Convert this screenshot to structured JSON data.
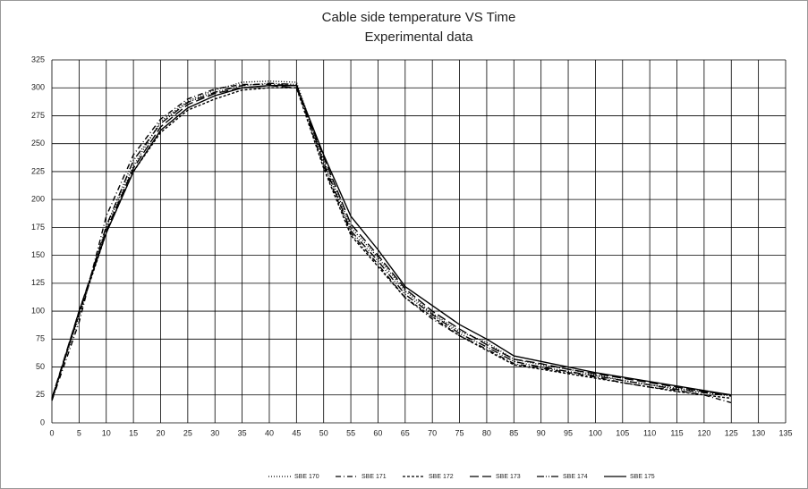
{
  "chart_data": {
    "type": "line",
    "title": "Cable side temperature VS Time",
    "subtitle": "Experimental data",
    "x": [
      0,
      5,
      10,
      15,
      20,
      25,
      30,
      35,
      40,
      45,
      50,
      55,
      60,
      65,
      70,
      75,
      80,
      85,
      90,
      95,
      100,
      105,
      110,
      115,
      120,
      125
    ],
    "series": [
      {
        "name": "SBE 170",
        "color": "#000000",
        "dash": "1,2",
        "values": [
          22,
          95,
          175,
          230,
          270,
          288,
          298,
          305,
          306,
          305,
          235,
          175,
          148,
          118,
          98,
          82,
          72,
          57,
          52,
          48,
          43,
          38,
          34,
          31,
          28,
          25
        ]
      },
      {
        "name": "SBE 171",
        "color": "#000000",
        "dash": "6,3,1,3",
        "values": [
          20,
          90,
          185,
          240,
          272,
          290,
          299,
          303,
          303,
          302,
          230,
          170,
          142,
          112,
          93,
          78,
          66,
          53,
          49,
          45,
          41,
          36,
          32,
          29,
          25,
          18
        ]
      },
      {
        "name": "SBE 172",
        "color": "#000000",
        "dash": "3,2",
        "values": [
          22,
          97,
          170,
          225,
          260,
          280,
          290,
          298,
          300,
          300,
          228,
          168,
          140,
          112,
          95,
          78,
          65,
          52,
          48,
          44,
          40,
          36,
          32,
          28,
          25,
          22
        ]
      },
      {
        "name": "SBE 173",
        "color": "#000000",
        "dash": "10,4",
        "values": [
          22,
          100,
          172,
          228,
          265,
          285,
          295,
          300,
          302,
          300,
          238,
          178,
          150,
          120,
          100,
          84,
          70,
          57,
          53,
          48,
          44,
          40,
          36,
          32,
          28,
          25
        ]
      },
      {
        "name": "SBE 174",
        "color": "#000000",
        "dash": "8,2,1,2,1,2",
        "values": [
          21,
          98,
          176,
          235,
          268,
          287,
          296,
          302,
          304,
          303,
          233,
          172,
          145,
          115,
          97,
          80,
          68,
          55,
          50,
          46,
          42,
          38,
          34,
          30,
          27,
          24
        ]
      },
      {
        "name": "SBE 175",
        "color": "#000000",
        "dash": "none",
        "values": [
          20,
          100,
          170,
          225,
          262,
          282,
          293,
          300,
          302,
          302,
          240,
          185,
          155,
          122,
          105,
          88,
          75,
          60,
          55,
          50,
          45,
          41,
          37,
          33,
          29,
          25
        ]
      }
    ],
    "xlim": [
      0,
      135
    ],
    "xticks": [
      0,
      5,
      10,
      15,
      20,
      25,
      30,
      35,
      40,
      45,
      50,
      55,
      60,
      65,
      70,
      75,
      80,
      85,
      90,
      95,
      100,
      105,
      110,
      115,
      120,
      125,
      130,
      135
    ],
    "ylim": [
      0,
      325
    ],
    "yticks": [
      0,
      25,
      50,
      75,
      100,
      125,
      150,
      175,
      200,
      225,
      250,
      275,
      300,
      325
    ],
    "grid": true,
    "legend": "bottom"
  }
}
